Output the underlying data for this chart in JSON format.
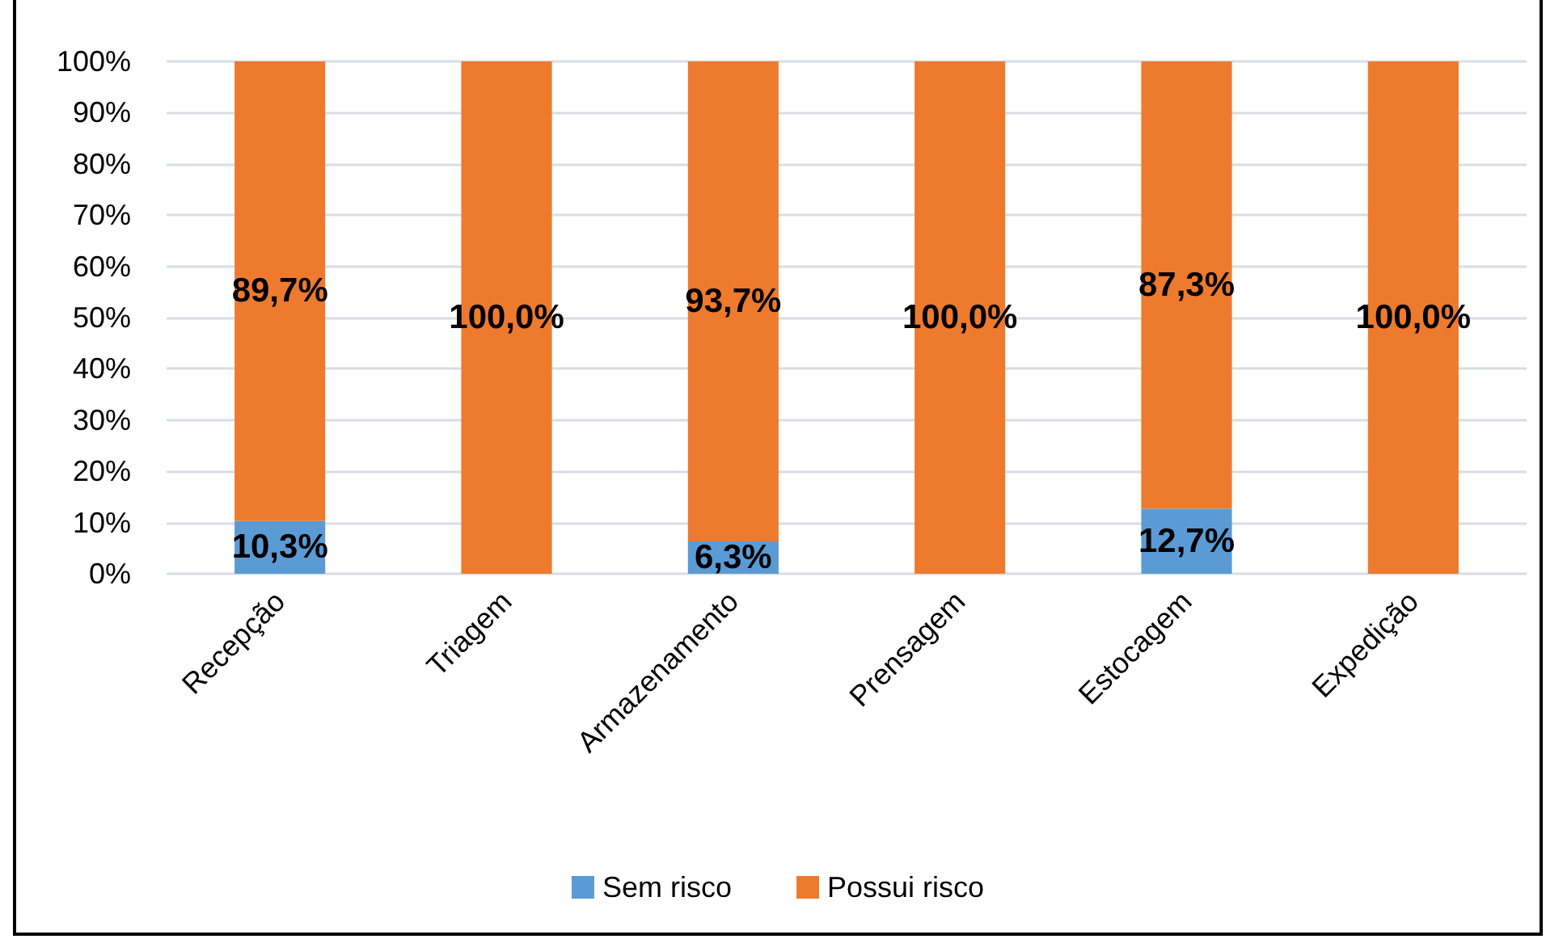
{
  "chart_data": {
    "type": "bar",
    "stacked": true,
    "categories": [
      "Recepção",
      "Triagem",
      "Armazenamento",
      "Prensagem",
      "Estocagem",
      "Expedição"
    ],
    "series": [
      {
        "name": "Sem risco",
        "color": "#5b9bd5",
        "values": [
          10.3,
          0,
          6.3,
          0,
          12.7,
          0
        ],
        "value_labels": [
          "10,3%",
          null,
          "6,3%",
          null,
          "12,7%",
          null
        ]
      },
      {
        "name": "Possui risco",
        "color": "#ee7a2e",
        "values": [
          89.7,
          100,
          93.7,
          100,
          87.3,
          100
        ],
        "value_labels": [
          "89,7%",
          "100,0%",
          "93,7%",
          "100,0%",
          "87,3%",
          "100,0%"
        ]
      }
    ],
    "ylim": [
      0,
      100
    ],
    "yticks": [
      {
        "value": 0,
        "label": "0%"
      },
      {
        "value": 10,
        "label": "10%"
      },
      {
        "value": 20,
        "label": "20%"
      },
      {
        "value": 30,
        "label": "30%"
      },
      {
        "value": 40,
        "label": "40%"
      },
      {
        "value": 50,
        "label": "50%"
      },
      {
        "value": 60,
        "label": "60%"
      },
      {
        "value": 70,
        "label": "70%"
      },
      {
        "value": 80,
        "label": "80%"
      },
      {
        "value": 90,
        "label": "90%"
      },
      {
        "value": 100,
        "label": "100%"
      }
    ],
    "grid": "y",
    "legend": "bottom"
  }
}
